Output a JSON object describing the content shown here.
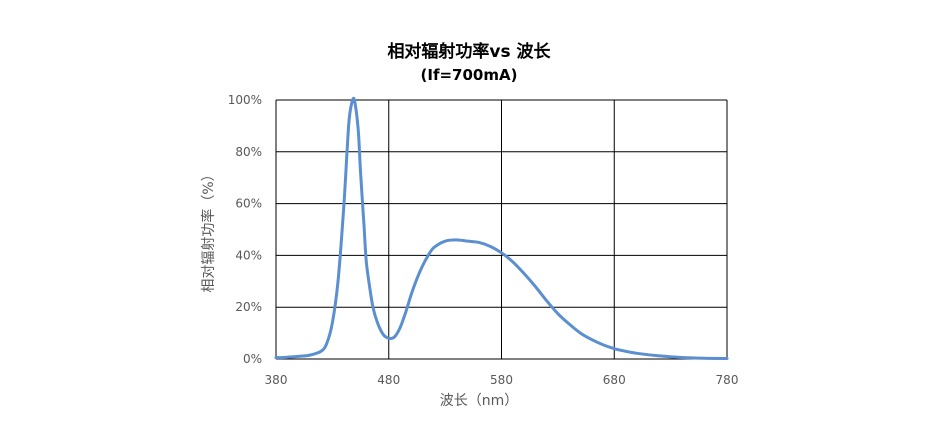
{
  "chart_data": {
    "type": "line",
    "title": "相对辐射功率vs 波长",
    "subtitle": "(If=700mA)",
    "xlabel": "波长（nm）",
    "ylabel": "相对辐射功率（%）",
    "xlim": [
      380,
      780
    ],
    "ylim": [
      0,
      100
    ],
    "xticks": [
      "380",
      "480",
      "580",
      "680",
      "780"
    ],
    "yticks": [
      "0%",
      "20%",
      "40%",
      "60%",
      "80%",
      "100%"
    ],
    "grid": true,
    "line_color": "#5b8fd0",
    "series": [
      {
        "x": [
          380,
          390,
          400,
          410,
          420,
          425,
          430,
          435,
          440,
          443,
          445,
          448,
          450,
          453,
          455,
          458,
          460,
          463,
          466,
          470,
          475,
          480,
          485,
          490,
          495,
          500,
          505,
          510,
          515,
          520,
          530,
          540,
          550,
          560,
          570,
          580,
          590,
          600,
          610,
          620,
          630,
          640,
          650,
          660,
          670,
          680,
          690,
          700,
          720,
          740,
          760,
          780
        ],
        "y": [
          0.5,
          0.7,
          1.0,
          1.5,
          3.0,
          6.0,
          14.0,
          30.0,
          58.0,
          80.0,
          93.0,
          100.0,
          99.0,
          88.0,
          72.0,
          52.0,
          38.0,
          28.0,
          20.0,
          14.0,
          9.5,
          8.0,
          8.5,
          12.0,
          18.0,
          25.0,
          31.0,
          36.0,
          40.0,
          43.0,
          45.5,
          46.0,
          45.5,
          45.0,
          43.5,
          41.0,
          37.5,
          33.0,
          28.0,
          22.5,
          17.5,
          13.5,
          10.0,
          7.5,
          5.5,
          4.0,
          3.0,
          2.2,
          1.2,
          0.6,
          0.3,
          0.2
        ]
      }
    ]
  }
}
